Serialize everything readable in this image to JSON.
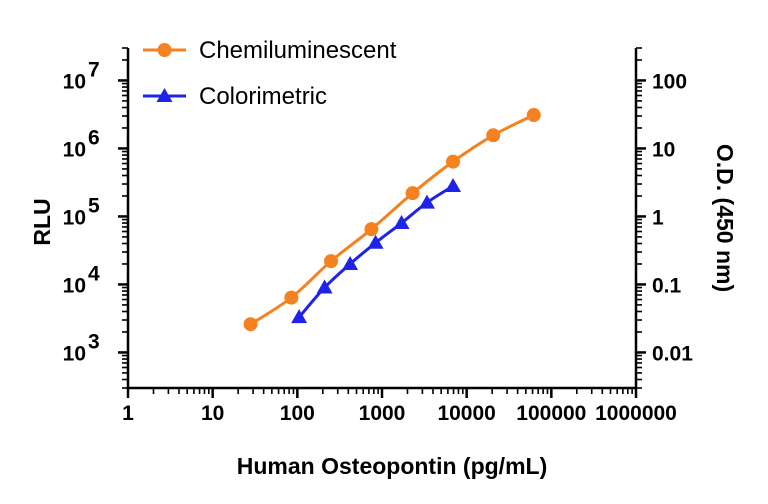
{
  "chart_data": {
    "type": "line",
    "xscale": "log",
    "xlabel": "Human Osteopontin (pg/mL)",
    "xlim": [
      1,
      1000000
    ],
    "xticks": [
      "1",
      "10",
      "100",
      "1000",
      "10000",
      "100000",
      "1000000"
    ],
    "y_left": {
      "label": "RLU",
      "scale": "log",
      "lim": [
        300,
        30000000
      ],
      "ticks": [
        {
          "base": "10",
          "exp": "3"
        },
        {
          "base": "10",
          "exp": "4"
        },
        {
          "base": "10",
          "exp": "5"
        },
        {
          "base": "10",
          "exp": "6"
        },
        {
          "base": "10",
          "exp": "7"
        }
      ]
    },
    "y_right": {
      "label": "O.D. (450 nm)",
      "scale": "log",
      "lim": [
        0.003,
        300
      ],
      "ticks": [
        "0.01",
        "0.1",
        "1",
        "10",
        "100"
      ]
    },
    "grid": false,
    "legend_position": "top-left",
    "series": [
      {
        "name": "Chemiluminescent",
        "axis": "left",
        "color": "#F5821F",
        "marker": "circle",
        "x": [
          28,
          85,
          250,
          750,
          2300,
          6900,
          20600,
          62000
        ],
        "y": [
          2600,
          6400,
          22000,
          65000,
          220000,
          640000,
          1560000,
          3100000
        ]
      },
      {
        "name": "Colorimetric",
        "axis": "right",
        "color": "#1F23E8",
        "marker": "triangle",
        "x": [
          105,
          210,
          420,
          840,
          1700,
          3400,
          6900
        ],
        "y": [
          0.033,
          0.09,
          0.2,
          0.41,
          0.8,
          1.6,
          2.8
        ]
      }
    ]
  }
}
